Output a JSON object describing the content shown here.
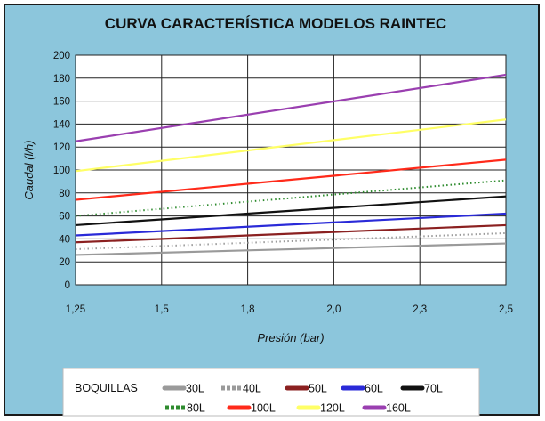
{
  "chart_data": {
    "type": "line",
    "title": "CURVA CARACTERÍSTICA  MODELOS RAINTEC",
    "xlabel": "Presión (bar)",
    "ylabel": "Caudal (l/h)",
    "x": [
      1.25,
      2.5
    ],
    "x_tick_labels": [
      "1,25",
      "1,5",
      "1,8",
      "2,0",
      "2,3",
      "2,5"
    ],
    "y_ticks": [
      0,
      20,
      40,
      60,
      80,
      100,
      120,
      140,
      160,
      180,
      200
    ],
    "ylim": [
      0,
      200
    ],
    "grid": true,
    "legend_title": "BOQUILLAS",
    "legend_placement": "bottom",
    "series": [
      {
        "name": "30L",
        "color": "#9a9a9a",
        "style": "solid",
        "values": [
          26,
          36
        ]
      },
      {
        "name": "40L",
        "color": "#9a9a9a",
        "style": "dotted",
        "values": [
          31,
          45
        ]
      },
      {
        "name": "50L",
        "color": "#8b2020",
        "style": "solid",
        "values": [
          37,
          52
        ]
      },
      {
        "name": "60L",
        "color": "#2a2ad8",
        "style": "solid",
        "values": [
          43,
          62
        ]
      },
      {
        "name": "70L",
        "color": "#111111",
        "style": "solid",
        "values": [
          52,
          77
        ]
      },
      {
        "name": "80L",
        "color": "#2e8b2e",
        "style": "dotted",
        "values": [
          60,
          91
        ]
      },
      {
        "name": "100L",
        "color": "#ff2a1a",
        "style": "solid",
        "values": [
          74,
          109
        ]
      },
      {
        "name": "120L",
        "color": "#ffff66",
        "style": "solid",
        "values": [
          99,
          144
        ]
      },
      {
        "name": "160L",
        "color": "#9a3fb0",
        "style": "solid",
        "values": [
          125,
          183
        ]
      }
    ]
  }
}
